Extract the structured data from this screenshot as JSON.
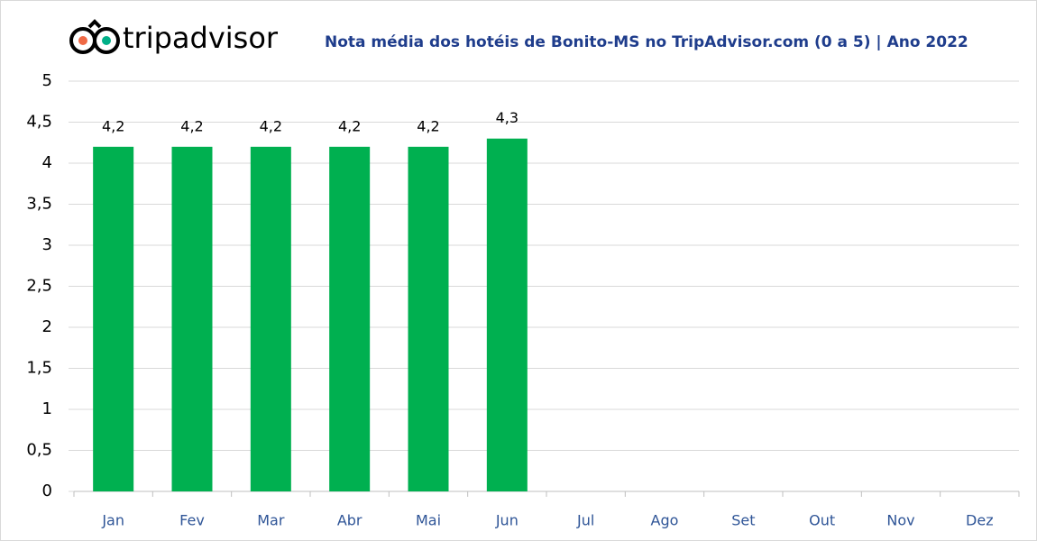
{
  "chart_data": {
    "type": "bar",
    "logo": "tripadvisor",
    "title": "Nota média dos hotéis de Bonito-MS no TripAdvisor.com (0 a 5) | Ano 2022",
    "categories": [
      "Jan",
      "Fev",
      "Mar",
      "Abr",
      "Mai",
      "Jun",
      "Jul",
      "Ago",
      "Set",
      "Out",
      "Nov",
      "Dez"
    ],
    "values": [
      4.2,
      4.2,
      4.2,
      4.2,
      4.2,
      4.3,
      null,
      null,
      null,
      null,
      null,
      null
    ],
    "value_labels": [
      "4,2",
      "4,2",
      "4,2",
      "4,2",
      "4,2",
      "4,3",
      null,
      null,
      null,
      null,
      null,
      null
    ],
    "color": "#00b050",
    "ylim": [
      0,
      5
    ],
    "yticks": [
      0,
      {
        "value": 0.5,
        "label": "0,5"
      },
      1,
      {
        "value": 1.5,
        "label": "1,5"
      },
      2,
      {
        "value": 2.5,
        "label": "2,5"
      },
      3,
      {
        "value": 3.5,
        "label": "3,5"
      },
      4,
      {
        "value": 4.5,
        "label": "4,5"
      },
      5
    ],
    "grid": true
  }
}
